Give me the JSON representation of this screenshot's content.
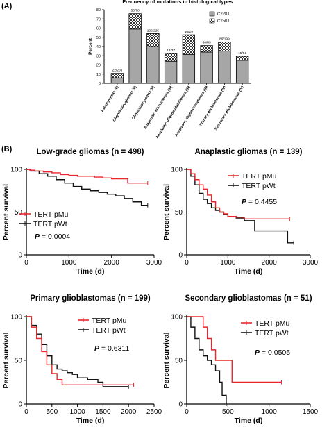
{
  "figure": {
    "panel_a_label": "(A)",
    "panel_b_label": "(B)"
  },
  "chart_data": [
    {
      "type": "bar",
      "stacked": true,
      "title": "Frequency of mutations in histological types",
      "ylabel": "Percent",
      "ylim": [
        0,
        80
      ],
      "yticks": [
        0,
        10,
        20,
        30,
        40,
        50,
        60,
        70,
        80
      ],
      "categories": [
        "Astrocytomas (II)",
        "Oligodendrogliomas (II)",
        "Oligoastrocytomas (II)",
        "Anaplastic astrocytomas (III)",
        "Anaplastic oligodendrogliomas (III)",
        "Anaplastic oligoastrocytomas (III)",
        "Primary glioblastomas (IV)",
        "Secondary glioblastomas (IV)"
      ],
      "annotations": [
        "22/203",
        "53/70",
        "122/225",
        "12/37",
        "10/19",
        "34/83",
        "89/199",
        "15/51"
      ],
      "series": [
        {
          "name": "C228T",
          "fill": "#a6a6a6",
          "values": [
            5.9,
            59,
            40,
            24,
            31.5,
            34,
            35,
            25
          ]
        },
        {
          "name": "C250T",
          "fill": "checker",
          "values": [
            4.9,
            16.7,
            14,
            8.4,
            21.2,
            7,
            10,
            4.4
          ]
        }
      ],
      "legend_position": "top-right",
      "grid": false
    },
    {
      "type": "line",
      "step": true,
      "title": "Low-grade gliomas (n = 498)",
      "xlabel": "Time (d)",
      "ylabel": "Percent survival",
      "xlim": [
        0,
        3000
      ],
      "ylim": [
        0,
        100
      ],
      "xticks": [
        0,
        1000,
        2000,
        3000
      ],
      "yticks": [
        0,
        50,
        100
      ],
      "p_value": "0.0004",
      "legend_position": "left",
      "series": [
        {
          "name": "TERT pMu",
          "color": "#e8262b",
          "x": [
            0,
            80,
            200,
            400,
            600,
            800,
            1000,
            1200,
            1400,
            1600,
            1800,
            2000,
            2200,
            2380,
            2850
          ],
          "y": [
            100,
            99,
            98,
            97,
            96,
            94,
            93,
            92,
            92,
            91,
            90,
            89,
            89,
            84,
            84
          ]
        },
        {
          "name": "TERT pWt",
          "color": "#111111",
          "x": [
            0,
            100,
            300,
            500,
            700,
            900,
            1100,
            1300,
            1500,
            1700,
            1900,
            2100,
            2300,
            2500,
            2700,
            2850
          ],
          "y": [
            100,
            98,
            95,
            92,
            88,
            84,
            80,
            77,
            75,
            73,
            71,
            69,
            66,
            62,
            58,
            58
          ]
        }
      ]
    },
    {
      "type": "line",
      "step": true,
      "title": "Anaplastic gliomas (n = 139)",
      "xlabel": "Time (d)",
      "ylabel": "Percent survival",
      "xlim": [
        0,
        3000
      ],
      "ylim": [
        0,
        100
      ],
      "xticks": [
        0,
        1000,
        2000,
        3000
      ],
      "yticks": [
        0,
        50,
        100
      ],
      "p_value": "0.4455",
      "legend_position": "top-right",
      "series": [
        {
          "name": "TERT pMu",
          "color": "#e8262b",
          "x": [
            0,
            100,
            200,
            300,
            400,
            500,
            600,
            700,
            800,
            900,
            1000,
            1200,
            1400,
            1600,
            2000,
            2500
          ],
          "y": [
            100,
            95,
            88,
            82,
            77,
            70,
            62,
            55,
            50,
            48,
            45,
            44,
            42,
            42,
            42,
            42
          ]
        },
        {
          "name": "TERT pWt",
          "color": "#111111",
          "x": [
            0,
            100,
            200,
            300,
            400,
            500,
            600,
            700,
            800,
            900,
            1000,
            1200,
            1400,
            1650,
            2450,
            2600
          ],
          "y": [
            100,
            92,
            82,
            72,
            65,
            60,
            55,
            52,
            50,
            47,
            45,
            43,
            40,
            28,
            14,
            14
          ]
        }
      ]
    },
    {
      "type": "line",
      "step": true,
      "title": "Primary glioblastomas (n = 199)",
      "xlabel": "Time (d)",
      "ylabel": "Percent survival",
      "xlim": [
        0,
        2500
      ],
      "ylim": [
        0,
        100
      ],
      "xticks": [
        0,
        500,
        1000,
        1500,
        2000,
        2500
      ],
      "yticks": [
        0,
        50,
        100
      ],
      "p_value": "0.6311",
      "legend_position": "top-right",
      "series": [
        {
          "name": "TERT pMu",
          "color": "#e8262b",
          "x": [
            0,
            100,
            200,
            300,
            400,
            500,
            600,
            700,
            800,
            1000,
            1500,
            2100
          ],
          "y": [
            100,
            88,
            75,
            60,
            45,
            35,
            28,
            22,
            22,
            22,
            22,
            22
          ]
        },
        {
          "name": "TERT pWt",
          "color": "#111111",
          "x": [
            0,
            100,
            200,
            300,
            400,
            500,
            600,
            700,
            800,
            900,
            1000,
            1200,
            1400,
            1500,
            1800,
            2000
          ],
          "y": [
            100,
            90,
            80,
            68,
            55,
            45,
            40,
            38,
            36,
            34,
            30,
            28,
            25,
            20,
            20,
            20
          ]
        }
      ]
    },
    {
      "type": "line",
      "step": true,
      "title": "Secondary glioblastomas (n = 51)",
      "xlabel": "Time (d)",
      "ylabel": "Percent survival",
      "xlim": [
        0,
        1500
      ],
      "ylim": [
        0,
        100
      ],
      "xticks": [
        0,
        500,
        1000,
        1500
      ],
      "yticks": [
        0,
        50,
        100
      ],
      "p_value": "0.0505",
      "legend_position": "top-right",
      "series": [
        {
          "name": "TERT pMu",
          "color": "#e8262b",
          "x": [
            0,
            100,
            200,
            250,
            300,
            350,
            550,
            1150
          ],
          "y": [
            100,
            100,
            88,
            75,
            62,
            50,
            25,
            25
          ]
        },
        {
          "name": "TERT pWt",
          "color": "#111111",
          "x": [
            0,
            50,
            100,
            150,
            200,
            250,
            300,
            350,
            400,
            430,
            480
          ],
          "y": [
            100,
            88,
            75,
            62,
            55,
            50,
            45,
            38,
            25,
            10,
            0
          ]
        }
      ]
    }
  ]
}
